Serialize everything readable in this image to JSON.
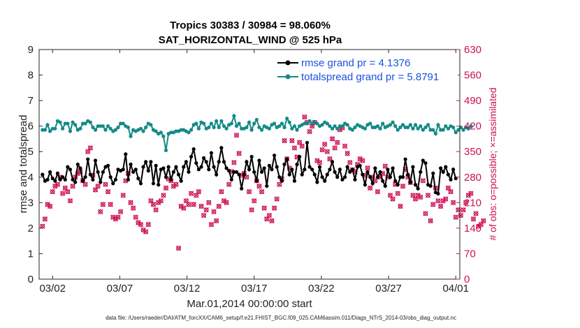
{
  "chart_data": {
    "type": "line",
    "title": "Tropics 30383 / 30984 = 98.060%",
    "subtitle": "SAT_HORIZONTAL_WIND @ 525 hPa",
    "xlabel": "Mar.01,2014 00:00:00 start",
    "ylabel": "rmse and totalspread",
    "ylabel_right": "# of obs: o=possible; ×=assimilated",
    "footnote": "data file: /Users/raeder/DAI/ATM_forcXX/CAM6_setup/f.e21.FHIST_BGC.f09_025.CAM6assim.011/Diags_NTrS_2014-03/obs_diag_output.nc",
    "x_range_days": [
      0,
      31.3
    ],
    "x_ticks": [
      {
        "day": 1,
        "label": "03/02"
      },
      {
        "day": 6,
        "label": "03/07"
      },
      {
        "day": 11,
        "label": "03/12"
      },
      {
        "day": 16,
        "label": "03/17"
      },
      {
        "day": 21,
        "label": "03/22"
      },
      {
        "day": 26,
        "label": "03/27"
      },
      {
        "day": 31,
        "label": "04/01"
      }
    ],
    "ylim": [
      0,
      9
    ],
    "y_ticks": [
      "0",
      "1",
      "2",
      "3",
      "4",
      "5",
      "6",
      "7",
      "8",
      "9"
    ],
    "ylim_right": [
      0,
      630
    ],
    "y_ticks_right": [
      "0",
      "70",
      "140",
      "210",
      "280",
      "350",
      "420",
      "490",
      "560",
      "630"
    ],
    "colors": {
      "rmse": "#000000",
      "spread": "#138a86",
      "obs": "#cc1155",
      "legend_text": "#1a52e0"
    },
    "legend": [
      {
        "key": "rmse",
        "label": "rmse grand pr = 4.1376"
      },
      {
        "key": "spread",
        "label": "totalspread grand pr = 5.8791"
      }
    ],
    "series": [
      {
        "name": "rmse",
        "values": [
          4.1,
          3.85,
          3.9,
          4.2,
          3.95,
          3.85,
          4.15,
          3.9,
          4.0,
          3.9,
          4.4,
          4.3,
          3.9,
          3.8,
          4.5,
          4.35,
          3.85,
          4.0,
          4.7,
          4.1,
          3.9,
          4.65,
          4.2,
          3.8,
          4.2,
          4.4,
          4.45,
          4.0,
          3.75,
          3.9,
          4.3,
          4.25,
          4.3,
          4.9,
          3.9,
          4.5,
          4.2,
          4.3,
          3.95,
          3.75,
          4.4,
          4.6,
          4.25,
          4.6,
          3.75,
          4.45,
          3.7,
          4.3,
          4.35,
          4.0,
          4.4,
          3.9,
          4.2,
          4.4,
          4.1,
          3.85,
          4.4,
          4.6,
          4.2,
          4.8,
          5.1,
          4.55,
          4.3,
          4.4,
          4.75,
          4.6,
          4.3,
          4.95,
          4.4,
          4.1,
          4.6,
          5.15,
          4.6,
          4.35,
          4.25,
          3.9,
          4.2,
          4.2,
          4.1,
          3.55,
          4.1,
          4.6,
          4.3,
          4.8,
          4.2,
          3.85,
          4.65,
          4.2,
          4.35,
          3.65,
          4.45,
          4.3,
          4.85,
          4.4,
          4.0,
          3.85,
          4.5,
          4.7,
          4.1,
          4.3,
          3.85,
          4.5,
          4.8,
          4.1,
          4.3,
          5.35,
          4.4,
          4.3,
          4.1,
          3.8,
          4.4,
          4.0,
          3.85,
          4.1,
          4.3,
          4.6,
          4.2,
          4.0,
          4.3,
          3.9,
          4.0,
          4.4,
          4.2,
          4.3,
          3.9,
          4.4,
          4.45,
          4.1,
          3.7,
          4.2,
          4.0,
          3.75,
          4.35,
          4.0,
          4.2,
          3.85,
          3.65,
          4.3,
          4.0,
          4.35,
          3.85,
          3.7,
          4.0,
          4.0,
          4.7,
          4.1,
          3.8,
          4.4,
          3.7,
          3.55,
          4.2,
          4.65,
          4.55,
          3.7,
          3.65,
          4.15,
          3.4,
          3.35,
          4.35,
          4.2,
          4.4,
          4.1,
          3.9,
          4.3,
          3.95
        ]
      },
      {
        "name": "totalspread",
        "values": [
          5.85,
          5.85,
          6.05,
          5.8,
          5.9,
          5.9,
          6.2,
          6.15,
          5.9,
          6.1,
          6.1,
          5.8,
          6.15,
          6.05,
          5.85,
          5.9,
          6.1,
          6.1,
          6.2,
          6.15,
          5.95,
          5.85,
          6.0,
          6.0,
          6.0,
          5.85,
          6.0,
          5.9,
          5.8,
          5.85,
          5.95,
          6.1,
          6.1,
          6.0,
          5.95,
          5.6,
          5.85,
          5.8,
          5.85,
          5.9,
          5.8,
          5.95,
          6.1,
          6.05,
          5.85,
          5.8,
          5.7,
          5.75,
          5.6,
          5.05,
          5.7,
          5.75,
          5.75,
          5.8,
          5.8,
          5.85,
          5.85,
          5.8,
          5.75,
          5.85,
          6.05,
          6.1,
          5.9,
          6.15,
          6.1,
          5.9,
          5.95,
          6.1,
          5.95,
          6.2,
          5.95,
          6.2,
          6.0,
          5.9,
          6.05,
          6.1,
          6.4,
          6.0,
          6.1,
          5.9,
          5.9,
          5.95,
          6.15,
          5.85,
          6.1,
          6.25,
          5.95,
          5.85,
          6.0,
          5.95,
          5.9,
          6.05,
          6.1,
          5.95,
          6.0,
          6.1,
          5.95,
          6.3,
          6.15,
          5.9,
          6.0,
          5.85,
          6.0,
          6.05,
          6.1,
          6.1,
          6.2,
          6.1,
          6.15,
          6.1,
          6.0,
          6.05,
          6.15,
          6.1,
          6.0,
          5.9,
          6.0,
          5.9,
          6.0,
          6.0,
          6.1,
          6.05,
          5.9,
          5.85,
          5.95,
          6.05,
          6.0,
          5.95,
          5.9,
          6.05,
          6.1,
          5.95,
          5.95,
          6.0,
          5.9,
          6.1,
          5.95,
          6.0,
          6.05,
          6.15,
          6.0,
          5.85,
          5.95,
          6.05,
          5.95,
          5.95,
          6.05,
          5.9,
          6.05,
          5.9,
          6.0,
          5.85,
          5.95,
          6.05,
          5.85,
          5.85,
          5.7,
          6.05,
          5.85,
          5.85,
          6.0,
          5.9,
          6.0,
          5.95,
          5.75,
          5.85,
          5.95,
          5.85,
          5.95,
          5.9,
          6.0
        ]
      },
      {
        "name": "obs_count",
        "values": [
          145,
          165,
          205,
          200,
          240,
          255,
          260,
          280,
          235,
          250,
          240,
          215,
          255,
          280,
          290,
          295,
          270,
          260,
          350,
          360,
          285,
          245,
          255,
          185,
          205,
          260,
          240,
          205,
          170,
          165,
          170,
          185,
          230,
          270,
          290,
          210,
          195,
          170,
          155,
          150,
          135,
          130,
          150,
          215,
          205,
          190,
          210,
          215,
          230,
          250,
          275,
          270,
          255,
          260,
          85,
          200,
          195,
          215,
          205,
          235,
          205,
          230,
          240,
          200,
          175,
          190,
          210,
          150,
          185,
          160,
          200,
          240,
          215,
          210,
          260,
          295,
          320,
          395,
          345,
          285,
          290,
          280,
          240,
          190,
          215,
          270,
          255,
          240,
          195,
          165,
          175,
          160,
          195,
          220,
          260,
          275,
          380,
          330,
          305,
          380,
          360,
          335,
          375,
          365,
          445,
          430,
          405,
          420,
          430,
          325,
          320,
          355,
          370,
          350,
          330,
          385,
          360,
          375,
          410,
          415,
          365,
          345,
          320,
          300,
          295,
          315,
          330,
          325,
          285,
          305,
          250,
          280,
          270,
          240,
          280,
          290,
          310,
          280,
          230,
          220,
          260,
          235,
          200,
          255,
          300,
          280,
          265,
          230,
          220,
          230,
          225,
          270,
          180,
          230,
          160,
          205,
          250,
          215,
          200,
          215,
          220,
          250,
          240,
          210,
          170,
          190,
          175,
          190,
          210,
          230,
          235,
          165,
          180,
          145,
          150,
          160
        ]
      }
    ]
  }
}
